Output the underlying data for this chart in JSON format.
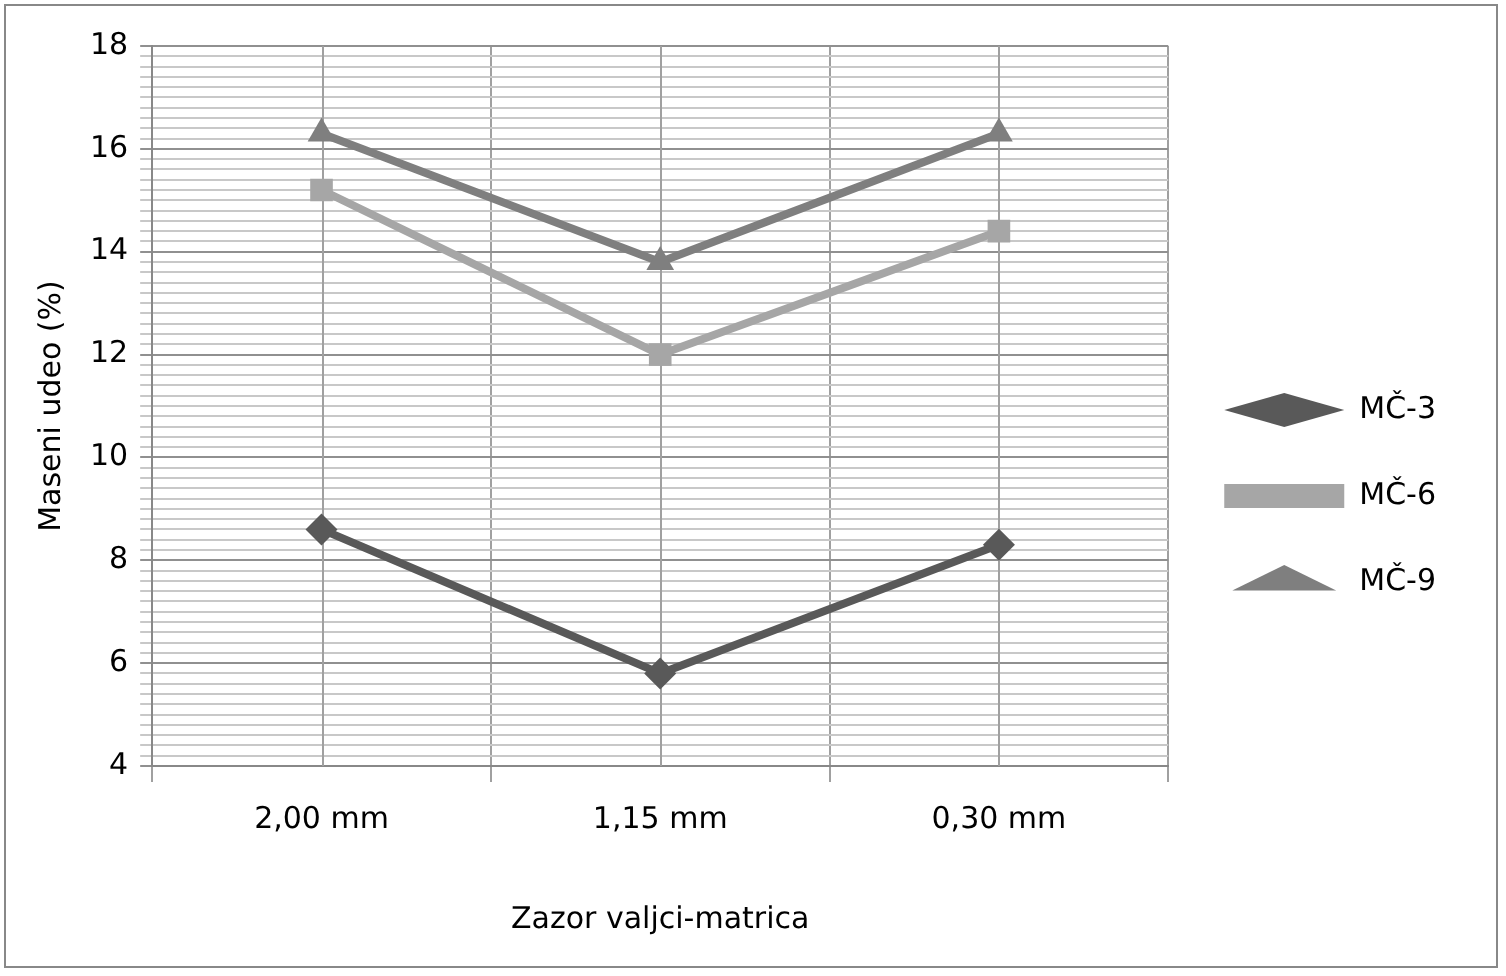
{
  "chart_data": {
    "type": "line",
    "xlabel": "Zazor valjci-matrica",
    "ylabel": "Maseni udeo (%)",
    "categories": [
      "2,00 mm",
      "1,15 mm",
      "0,30 mm"
    ],
    "series": [
      {
        "name": "MČ-3",
        "color": "#595959",
        "marker": "diamond",
        "values": [
          8.6,
          5.8,
          8.3
        ]
      },
      {
        "name": "MČ-6",
        "color": "#a6a6a6",
        "marker": "square",
        "values": [
          15.2,
          12.0,
          14.4
        ]
      },
      {
        "name": "MČ-9",
        "color": "#7f7f7f",
        "marker": "triangle",
        "values": [
          16.3,
          13.8,
          16.3
        ]
      }
    ],
    "ylim": [
      4,
      18
    ],
    "yticks": [
      4,
      {
        "value": 4.2,
        "label": null
      },
      {
        "value": 4.4,
        "label": null
      },
      {
        "value": 4.6,
        "label": null
      },
      {
        "value": 4.8,
        "label": null
      },
      {
        "value": 5,
        "label": null
      },
      {
        "value": 5.2,
        "label": null
      },
      {
        "value": 5.4,
        "label": null
      },
      {
        "value": 5.6,
        "label": null
      },
      {
        "value": 5.8,
        "label": null
      },
      6,
      {
        "value": 6.2,
        "label": null
      },
      {
        "value": 6.4,
        "label": null
      },
      {
        "value": 6.6,
        "label": null
      },
      {
        "value": 6.8,
        "label": null
      },
      {
        "value": 7,
        "label": null
      },
      {
        "value": 7.2,
        "label": null
      },
      {
        "value": 7.4,
        "label": null
      },
      {
        "value": 7.6,
        "label": null
      },
      {
        "value": 7.8,
        "label": null
      },
      8,
      {
        "value": 8.2,
        "label": null
      },
      {
        "value": 8.4,
        "label": null
      },
      {
        "value": 8.6,
        "label": null
      },
      {
        "value": 8.8,
        "label": null
      },
      {
        "value": 9,
        "label": null
      },
      {
        "value": 9.2,
        "label": null
      },
      {
        "value": 9.4,
        "label": null
      },
      {
        "value": 9.6,
        "label": null
      },
      {
        "value": 9.8,
        "label": null
      },
      10,
      {
        "value": 10.2,
        "label": null
      },
      {
        "value": 10.4,
        "label": null
      },
      {
        "value": 10.6,
        "label": null
      },
      {
        "value": 10.8,
        "label": null
      },
      {
        "value": 11,
        "label": null
      },
      {
        "value": 11.2,
        "label": null
      },
      {
        "value": 11.4,
        "label": null
      },
      {
        "value": 11.6,
        "label": null
      },
      {
        "value": 11.8,
        "label": null
      },
      12,
      {
        "value": 12.2,
        "label": null
      },
      {
        "value": 12.4,
        "label": null
      },
      {
        "value": 12.6,
        "label": null
      },
      {
        "value": 12.8,
        "label": null
      },
      {
        "value": 13,
        "label": null
      },
      {
        "value": 13.2,
        "label": null
      },
      {
        "value": 13.4,
        "label": null
      },
      {
        "value": 13.6,
        "label": null
      },
      {
        "value": 13.8,
        "label": null
      },
      14,
      {
        "value": 14.2,
        "label": null
      },
      {
        "value": 14.4,
        "label": null
      },
      {
        "value": 14.6,
        "label": null
      },
      {
        "value": 14.8,
        "label": null
      },
      {
        "value": 15,
        "label": null
      },
      {
        "value": 15.2,
        "label": null
      },
      {
        "value": 15.4,
        "label": null
      },
      {
        "value": 15.6,
        "label": null
      },
      {
        "value": 15.8,
        "label": null
      },
      16,
      {
        "value": 16.2,
        "label": null
      },
      {
        "value": 16.4,
        "label": null
      },
      {
        "value": 16.6,
        "label": null
      },
      {
        "value": 16.8,
        "label": null
      },
      {
        "value": 17,
        "label": null
      },
      {
        "value": 17.2,
        "label": null
      },
      {
        "value": 17.4,
        "label": null
      },
      {
        "value": 17.6,
        "label": null
      },
      {
        "value": 17.8,
        "label": null
      },
      18
    ],
    "grid": true,
    "legend": "right",
    "line_style": "solid"
  }
}
